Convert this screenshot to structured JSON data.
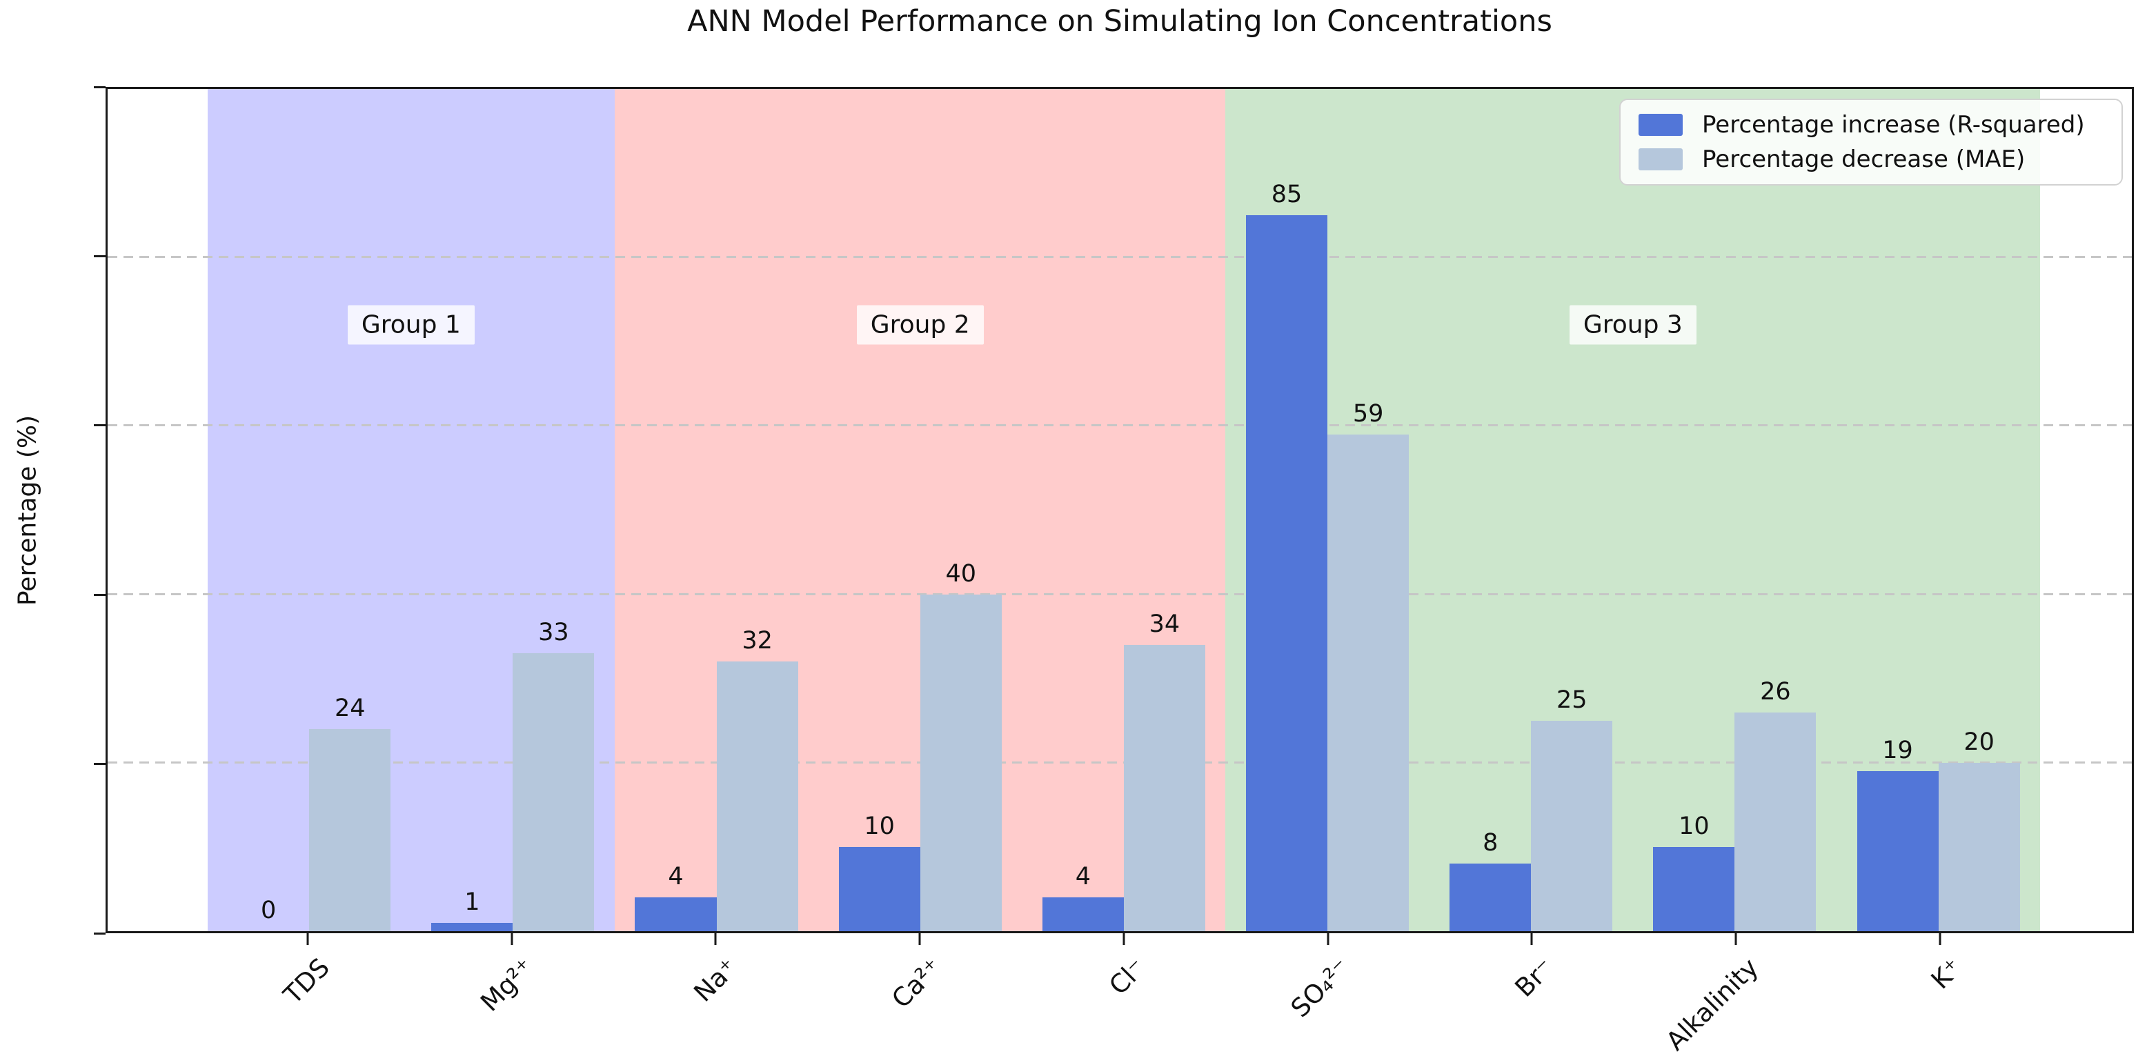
{
  "chart_data": {
    "type": "bar",
    "title": "ANN Model Performance on Simulating Ion Concentrations",
    "ylabel": "Percentage (%)",
    "ylim": [
      0,
      100
    ],
    "yticks": [
      0,
      20,
      40,
      60,
      80,
      100
    ],
    "grid_values": [
      20,
      40,
      60,
      80
    ],
    "grid_style": "dashed",
    "xlim": [
      -0.99,
      8.95
    ],
    "bar_width": 0.4,
    "categories": [
      "TDS",
      "Mg²⁺",
      "Na⁺",
      "Ca²⁺",
      "Cl⁻",
      "SO₄²⁻",
      "Br⁻",
      "Alkalinity",
      "K⁺"
    ],
    "series": [
      {
        "name": "Percentage increase (R-squared)",
        "color": "#5276d8",
        "values": [
          0,
          1,
          4,
          10,
          4,
          85,
          8,
          10,
          19
        ]
      },
      {
        "name": "Percentage decrease (MAE)",
        "color": "#b5c7dc",
        "values": [
          24,
          33,
          32,
          40,
          34,
          59,
          25,
          26,
          20
        ]
      }
    ],
    "groups": [
      {
        "label": "Group 1",
        "from": -0.5,
        "to": 1.5,
        "band_color": "rgba(0,0,255,0.2)",
        "label_x": 0.5,
        "label_y": 72
      },
      {
        "label": "Group 2",
        "from": 1.5,
        "to": 4.5,
        "band_color": "rgba(255,0,0,0.2)",
        "label_x": 3.0,
        "label_y": 72
      },
      {
        "label": "Group 3",
        "from": 4.5,
        "to": 8.5,
        "band_color": "rgba(0,128,0,0.2)",
        "label_x": 6.5,
        "label_y": 72
      }
    ],
    "legend_position": "upper right",
    "value_labels_shown": true
  }
}
